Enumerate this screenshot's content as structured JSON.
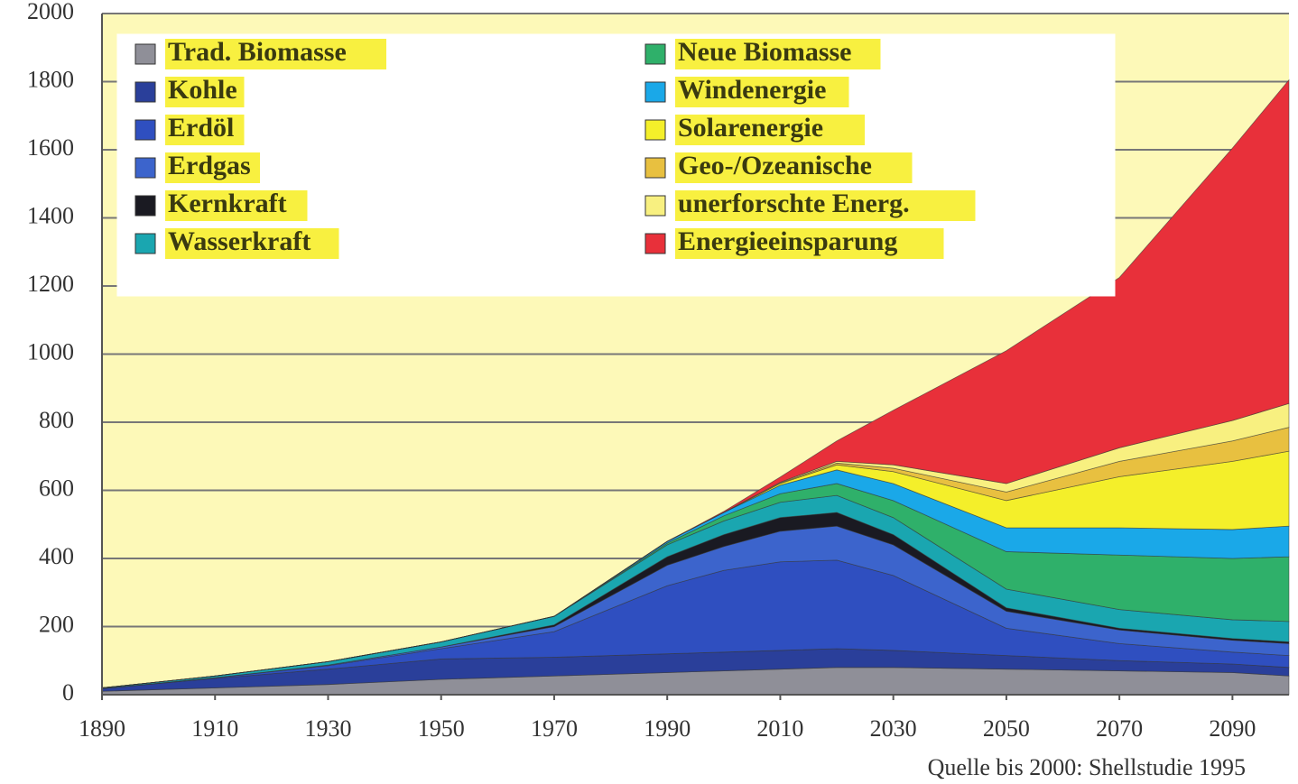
{
  "chart_data": {
    "type": "stacked_area",
    "source": "Quelle bis 2000: Shellstudie 1995",
    "legend": "top-left",
    "grid": true,
    "x": [
      1890,
      1910,
      1930,
      1950,
      1970,
      1990,
      2000,
      2010,
      2020,
      2030,
      2050,
      2070,
      2090,
      2100
    ],
    "xlim": [
      1890,
      2100
    ],
    "xticks": [
      1890,
      1910,
      1930,
      1950,
      1970,
      1990,
      2010,
      2030,
      2050,
      2070,
      2090
    ],
    "ylim": [
      0,
      2000
    ],
    "yticks": [
      0,
      200,
      400,
      600,
      800,
      1000,
      1200,
      1400,
      1600,
      1800,
      2000
    ],
    "series": [
      {
        "name": "Trad. Biomasse",
        "color": "#8f8f98",
        "values": [
          10,
          20,
          30,
          45,
          55,
          65,
          70,
          75,
          80,
          80,
          75,
          70,
          65,
          55
        ]
      },
      {
        "name": "Kohle",
        "color": "#2a3f9a",
        "values": [
          8,
          28,
          45,
          60,
          55,
          55,
          55,
          55,
          55,
          50,
          40,
          30,
          25,
          25
        ]
      },
      {
        "name": "Erdöl",
        "color": "#2f4fc0",
        "values": [
          0,
          2,
          10,
          30,
          75,
          200,
          240,
          260,
          260,
          220,
          80,
          50,
          35,
          35
        ]
      },
      {
        "name": "Erdgas",
        "color": "#3c64cc",
        "values": [
          0,
          0,
          2,
          5,
          15,
          60,
          70,
          90,
          100,
          90,
          50,
          40,
          35,
          35
        ]
      },
      {
        "name": "Kernkraft",
        "color": "#1a1a22",
        "values": [
          0,
          0,
          0,
          0,
          5,
          25,
          35,
          40,
          40,
          30,
          10,
          5,
          5,
          5
        ]
      },
      {
        "name": "Wasserkraft",
        "color": "#1aa6b0",
        "values": [
          2,
          5,
          10,
          15,
          25,
          35,
          40,
          45,
          50,
          50,
          55,
          55,
          55,
          60
        ]
      },
      {
        "name": "Neue Biomasse",
        "color": "#2fb06a",
        "values": [
          0,
          0,
          0,
          0,
          0,
          5,
          15,
          25,
          35,
          50,
          110,
          160,
          180,
          190
        ]
      },
      {
        "name": "Windenergie",
        "color": "#1aa8e8",
        "values": [
          0,
          0,
          0,
          0,
          0,
          5,
          10,
          25,
          40,
          50,
          70,
          80,
          85,
          90
        ]
      },
      {
        "name": "Solarenergie",
        "color": "#f4ef2a",
        "values": [
          0,
          0,
          0,
          0,
          0,
          0,
          0,
          5,
          15,
          35,
          80,
          150,
          200,
          220
        ]
      },
      {
        "name": "Geo-/Ozeanische",
        "color": "#e8c040",
        "values": [
          0,
          0,
          0,
          0,
          0,
          0,
          0,
          2,
          5,
          10,
          25,
          45,
          60,
          70
        ]
      },
      {
        "name": "unerforschte Energ.",
        "color": "#f8f080",
        "values": [
          0,
          0,
          0,
          0,
          0,
          0,
          0,
          2,
          5,
          10,
          25,
          40,
          60,
          70
        ]
      },
      {
        "name": "Energieeinsparung",
        "color": "#e8303a",
        "values": [
          0,
          0,
          0,
          0,
          0,
          0,
          3,
          15,
          60,
          160,
          390,
          500,
          800,
          950
        ]
      }
    ]
  }
}
